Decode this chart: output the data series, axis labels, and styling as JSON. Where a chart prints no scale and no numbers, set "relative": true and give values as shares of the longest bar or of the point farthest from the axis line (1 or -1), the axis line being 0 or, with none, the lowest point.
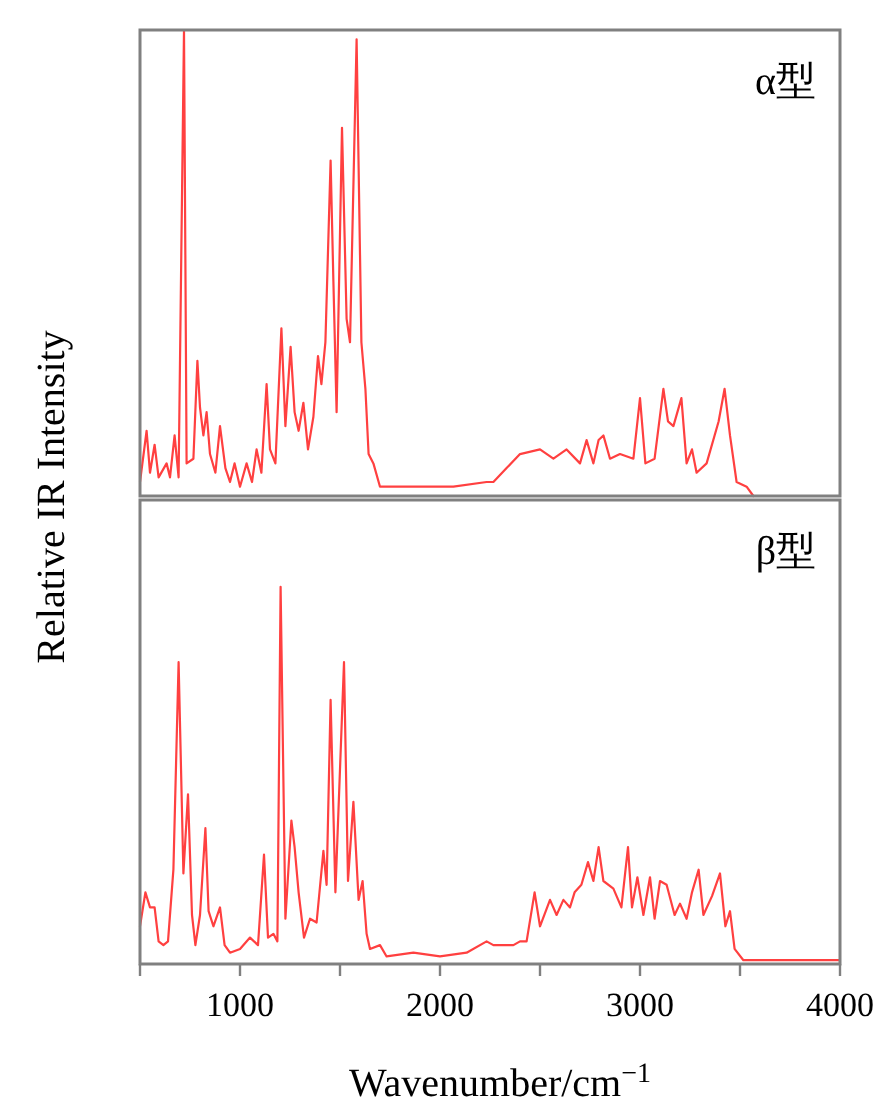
{
  "chart_data": [
    {
      "type": "line",
      "title": "α型",
      "ylabel": "Relative IR Intensity",
      "relative": true,
      "xlim": [
        500,
        4000
      ],
      "tick_labels": false,
      "series": [
        {
          "color": "#ff4040",
          "x": [
            500,
            533,
            550,
            573,
            593,
            633,
            650,
            673,
            693,
            720,
            733,
            767,
            787,
            800,
            817,
            833,
            850,
            877,
            900,
            927,
            950,
            973,
            1000,
            1033,
            1060,
            1083,
            1107,
            1133,
            1150,
            1177,
            1207,
            1227,
            1253,
            1273,
            1293,
            1317,
            1340,
            1367,
            1390,
            1407,
            1427,
            1453,
            1467,
            1483,
            1510,
            1533,
            1550,
            1583,
            1607,
            1627,
            1643,
            1667,
            1700,
            1800,
            1933,
            2067,
            2233,
            2267,
            2333,
            2400,
            2500,
            2567,
            2633,
            2700,
            2733,
            2767,
            2793,
            2817,
            2850,
            2900,
            2967,
            3000,
            3027,
            3073,
            3117,
            3140,
            3167,
            3207,
            3233,
            3260,
            3283,
            3333,
            3393,
            3423,
            3450,
            3483,
            3533,
            3567
          ],
          "values": [
            0.03,
            0.14,
            0.05,
            0.11,
            0.04,
            0.07,
            0.04,
            0.13,
            0.04,
            1.0,
            0.07,
            0.08,
            0.29,
            0.19,
            0.13,
            0.18,
            0.09,
            0.05,
            0.15,
            0.06,
            0.03,
            0.07,
            0.02,
            0.07,
            0.03,
            0.1,
            0.05,
            0.24,
            0.1,
            0.07,
            0.36,
            0.15,
            0.32,
            0.18,
            0.14,
            0.2,
            0.1,
            0.17,
            0.3,
            0.24,
            0.33,
            0.72,
            0.46,
            0.18,
            0.79,
            0.38,
            0.33,
            0.98,
            0.33,
            0.23,
            0.09,
            0.07,
            0.02,
            0.02,
            0.02,
            0.02,
            0.03,
            0.03,
            0.06,
            0.09,
            0.1,
            0.08,
            0.1,
            0.07,
            0.12,
            0.07,
            0.12,
            0.13,
            0.08,
            0.09,
            0.08,
            0.21,
            0.07,
            0.08,
            0.23,
            0.16,
            0.15,
            0.21,
            0.07,
            0.1,
            0.05,
            0.07,
            0.16,
            0.23,
            0.13,
            0.03,
            0.02,
            0.0
          ]
        }
      ]
    },
    {
      "type": "line",
      "title": "β型",
      "xlabel": "Wavenumber/cm$^{−1}$",
      "relative": true,
      "xlim": [
        500,
        4000
      ],
      "tick_labels": "x",
      "xticks": [
        {
          "value": 500,
          "label": null
        },
        1000,
        {
          "value": 1500,
          "label": null
        },
        2000,
        {
          "value": 2500,
          "label": null
        },
        3000,
        {
          "value": 3500,
          "label": null
        },
        4000
      ],
      "series": [
        {
          "color": "#ff4040",
          "x": [
            500,
            527,
            550,
            573,
            593,
            617,
            640,
            667,
            693,
            717,
            740,
            760,
            777,
            800,
            827,
            843,
            867,
            900,
            923,
            950,
            1000,
            1050,
            1090,
            1120,
            1140,
            1167,
            1187,
            1203,
            1227,
            1257,
            1273,
            1293,
            1320,
            1350,
            1383,
            1417,
            1433,
            1453,
            1477,
            1520,
            1540,
            1567,
            1593,
            1613,
            1633,
            1650,
            1700,
            1733,
            1867,
            2000,
            2133,
            2233,
            2267,
            2300,
            2367,
            2400,
            2433,
            2473,
            2500,
            2550,
            2583,
            2617,
            2650,
            2673,
            2707,
            2740,
            2767,
            2793,
            2817,
            2867,
            2907,
            2940,
            2960,
            2987,
            3017,
            3050,
            3073,
            3100,
            3133,
            3173,
            3200,
            3233,
            3260,
            3293,
            3317,
            3360,
            3400,
            3427,
            3450,
            3473,
            3517,
            3600,
            4000
          ],
          "values": [
            0.1,
            0.19,
            0.15,
            0.15,
            0.06,
            0.05,
            0.06,
            0.25,
            0.8,
            0.24,
            0.45,
            0.13,
            0.05,
            0.13,
            0.36,
            0.14,
            0.1,
            0.15,
            0.05,
            0.03,
            0.04,
            0.07,
            0.05,
            0.29,
            0.07,
            0.08,
            0.06,
            1.0,
            0.12,
            0.38,
            0.31,
            0.19,
            0.07,
            0.12,
            0.11,
            0.3,
            0.21,
            0.7,
            0.19,
            0.8,
            0.22,
            0.43,
            0.17,
            0.22,
            0.08,
            0.04,
            0.05,
            0.02,
            0.03,
            0.02,
            0.03,
            0.06,
            0.05,
            0.05,
            0.05,
            0.06,
            0.06,
            0.19,
            0.1,
            0.17,
            0.13,
            0.17,
            0.15,
            0.19,
            0.21,
            0.27,
            0.22,
            0.31,
            0.22,
            0.2,
            0.15,
            0.31,
            0.15,
            0.23,
            0.13,
            0.23,
            0.12,
            0.22,
            0.21,
            0.13,
            0.16,
            0.12,
            0.19,
            0.25,
            0.13,
            0.18,
            0.24,
            0.1,
            0.14,
            0.04,
            0.01,
            0.01,
            0.01
          ]
        }
      ]
    }
  ]
}
